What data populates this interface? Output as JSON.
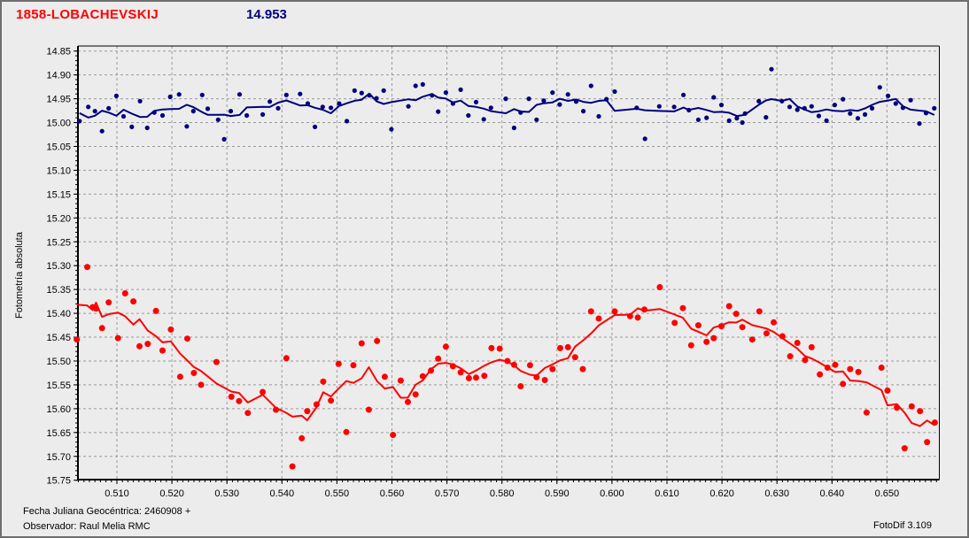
{
  "header": {
    "object_name": "1858-LOBACHEVSKIJ",
    "mean_magnitude": "14.953"
  },
  "footer": {
    "julian_date_line": "Fecha Juliana Geocéntrica: 2460908 +",
    "observer_line": "Observador: Raul Melia RMC",
    "app_version": "FotoDif 3.109"
  },
  "chart_data": {
    "type": "scatter",
    "title": "",
    "xlabel": "",
    "ylabel": "Fotometría absoluta",
    "grid": true,
    "legend": "none",
    "x_axis": {
      "min": 0.5028,
      "max": 0.6594,
      "tick_values": [
        0.51,
        0.52,
        0.53,
        0.54,
        0.55,
        0.56,
        0.57,
        0.58,
        0.59,
        0.6,
        0.61,
        0.62,
        0.63,
        0.64,
        0.65
      ],
      "tick_labels": [
        "0.510",
        "0.520",
        "0.530",
        "0.540",
        "0.550",
        "0.560",
        "0.570",
        "0.580",
        "0.590",
        "0.600",
        "0.610",
        "0.620",
        "0.630",
        "0.640",
        "0.650"
      ],
      "minor_step": 0.001
    },
    "y_axis": {
      "min": 14.85,
      "max": 15.75,
      "inverted": true,
      "tick_values": [
        14.85,
        14.9,
        14.95,
        15.0,
        15.05,
        15.1,
        15.15,
        15.2,
        15.25,
        15.3,
        15.35,
        15.4,
        15.45,
        15.5,
        15.55,
        15.6,
        15.65,
        15.7,
        15.75
      ],
      "tick_labels": [
        "14.85",
        "14.90",
        "14.95",
        "15.00",
        "15.05",
        "15.10",
        "15.15",
        "15.20",
        "15.25",
        "15.30",
        "15.35",
        "15.40",
        "15.45",
        "15.50",
        "15.55",
        "15.60",
        "15.65",
        "15.70",
        "15.75"
      ],
      "minor_step": 0.01
    },
    "colors": {
      "background": "#ececec",
      "grid": "#999999",
      "axis": "#000000",
      "blue_series": "#000080",
      "red_series": "#ff0000"
    },
    "series": [
      {
        "name": "blue",
        "color": "#000080",
        "marker_radius": 2.6,
        "trend_line": "moving_average_5",
        "points": [
          [
            0.5032,
            14.997
          ],
          [
            0.5048,
            14.967
          ],
          [
            0.506,
            14.976
          ],
          [
            0.5073,
            15.018
          ],
          [
            0.5085,
            14.97
          ],
          [
            0.5099,
            14.944
          ],
          [
            0.5112,
            14.987
          ],
          [
            0.5127,
            15.009
          ],
          [
            0.5142,
            14.955
          ],
          [
            0.5155,
            15.011
          ],
          [
            0.5168,
            14.979
          ],
          [
            0.5183,
            14.985
          ],
          [
            0.5197,
            14.946
          ],
          [
            0.5213,
            14.941
          ],
          [
            0.5227,
            15.008
          ],
          [
            0.5239,
            14.976
          ],
          [
            0.5255,
            14.942
          ],
          [
            0.5265,
            14.971
          ],
          [
            0.5284,
            14.994
          ],
          [
            0.5295,
            15.035
          ],
          [
            0.5307,
            14.976
          ],
          [
            0.5323,
            14.941
          ],
          [
            0.5336,
            14.985
          ],
          [
            0.5365,
            14.983
          ],
          [
            0.5378,
            14.956
          ],
          [
            0.5393,
            14.97
          ],
          [
            0.5408,
            14.942
          ],
          [
            0.5433,
            14.94
          ],
          [
            0.5447,
            14.96
          ],
          [
            0.546,
            15.009
          ],
          [
            0.5474,
            14.967
          ],
          [
            0.5489,
            14.969
          ],
          [
            0.5504,
            14.96
          ],
          [
            0.5518,
            14.997
          ],
          [
            0.5532,
            14.933
          ],
          [
            0.5545,
            14.938
          ],
          [
            0.5559,
            14.943
          ],
          [
            0.5572,
            14.949
          ],
          [
            0.5585,
            14.933
          ],
          [
            0.5599,
            15.014
          ],
          [
            0.563,
            14.966
          ],
          [
            0.5643,
            14.923
          ],
          [
            0.5656,
            14.92
          ],
          [
            0.5673,
            14.943
          ],
          [
            0.5684,
            14.977
          ],
          [
            0.5698,
            14.937
          ],
          [
            0.5711,
            14.96
          ],
          [
            0.5725,
            14.931
          ],
          [
            0.5739,
            14.985
          ],
          [
            0.5753,
            14.957
          ],
          [
            0.5767,
            14.993
          ],
          [
            0.578,
            14.969
          ],
          [
            0.5807,
            14.95
          ],
          [
            0.5822,
            15.011
          ],
          [
            0.5834,
            14.979
          ],
          [
            0.5849,
            14.95
          ],
          [
            0.5863,
            14.994
          ],
          [
            0.5876,
            14.954
          ],
          [
            0.5892,
            14.937
          ],
          [
            0.5905,
            14.962
          ],
          [
            0.592,
            14.941
          ],
          [
            0.5935,
            14.956
          ],
          [
            0.5948,
            14.976
          ],
          [
            0.5962,
            14.923
          ],
          [
            0.5976,
            14.987
          ],
          [
            0.599,
            14.951
          ],
          [
            0.6005,
            14.935
          ],
          [
            0.6045,
            14.969
          ],
          [
            0.606,
            15.034
          ],
          [
            0.6086,
            14.966
          ],
          [
            0.6113,
            14.967
          ],
          [
            0.613,
            14.942
          ],
          [
            0.614,
            14.974
          ],
          [
            0.6157,
            14.994
          ],
          [
            0.6172,
            14.99
          ],
          [
            0.6185,
            14.947
          ],
          [
            0.6199,
            14.963
          ],
          [
            0.6213,
            14.996
          ],
          [
            0.6227,
            14.991
          ],
          [
            0.6237,
            15.0
          ],
          [
            0.6242,
            14.981
          ],
          [
            0.6267,
            14.955
          ],
          [
            0.628,
            14.989
          ],
          [
            0.629,
            14.888
          ],
          [
            0.6309,
            14.955
          ],
          [
            0.6323,
            14.967
          ],
          [
            0.6337,
            14.973
          ],
          [
            0.635,
            14.97
          ],
          [
            0.6363,
            14.966
          ],
          [
            0.6376,
            14.986
          ],
          [
            0.639,
            14.996
          ],
          [
            0.6405,
            14.963
          ],
          [
            0.642,
            14.951
          ],
          [
            0.6433,
            14.981
          ],
          [
            0.6447,
            14.991
          ],
          [
            0.646,
            14.983
          ],
          [
            0.6473,
            14.97
          ],
          [
            0.6487,
            14.926
          ],
          [
            0.6502,
            14.944
          ],
          [
            0.6516,
            14.96
          ],
          [
            0.6529,
            14.969
          ],
          [
            0.6543,
            14.953
          ],
          [
            0.6559,
            15.002
          ],
          [
            0.6571,
            14.98
          ],
          [
            0.6586,
            14.97
          ]
        ]
      },
      {
        "name": "red",
        "color": "#ff0000",
        "marker_radius": 3.5,
        "trend_line": "moving_average_5",
        "points": [
          [
            0.5027,
            15.455
          ],
          [
            0.5046,
            15.303
          ],
          [
            0.5056,
            15.387
          ],
          [
            0.5062,
            15.39
          ],
          [
            0.5073,
            15.431
          ],
          [
            0.5085,
            15.377
          ],
          [
            0.5102,
            15.452
          ],
          [
            0.5115,
            15.358
          ],
          [
            0.513,
            15.375
          ],
          [
            0.5141,
            15.469
          ],
          [
            0.5156,
            15.464
          ],
          [
            0.5171,
            15.395
          ],
          [
            0.5183,
            15.478
          ],
          [
            0.5198,
            15.434
          ],
          [
            0.5215,
            15.533
          ],
          [
            0.5228,
            15.453
          ],
          [
            0.524,
            15.525
          ],
          [
            0.5253,
            15.55
          ],
          [
            0.5281,
            15.502
          ],
          [
            0.5308,
            15.575
          ],
          [
            0.5322,
            15.584
          ],
          [
            0.5338,
            15.609
          ],
          [
            0.5365,
            15.565
          ],
          [
            0.5389,
            15.602
          ],
          [
            0.5408,
            15.494
          ],
          [
            0.5419,
            15.721
          ],
          [
            0.5436,
            15.662
          ],
          [
            0.5446,
            15.605
          ],
          [
            0.5463,
            15.591
          ],
          [
            0.5475,
            15.543
          ],
          [
            0.5489,
            15.583
          ],
          [
            0.5503,
            15.506
          ],
          [
            0.5517,
            15.649
          ],
          [
            0.553,
            15.509
          ],
          [
            0.5545,
            15.463
          ],
          [
            0.5558,
            15.602
          ],
          [
            0.5573,
            15.458
          ],
          [
            0.5587,
            15.533
          ],
          [
            0.5602,
            15.655
          ],
          [
            0.5616,
            15.541
          ],
          [
            0.5629,
            15.586
          ],
          [
            0.5643,
            15.57
          ],
          [
            0.5656,
            15.532
          ],
          [
            0.5671,
            15.52
          ],
          [
            0.5684,
            15.495
          ],
          [
            0.5698,
            15.47
          ],
          [
            0.5711,
            15.511
          ],
          [
            0.5725,
            15.524
          ],
          [
            0.574,
            15.536
          ],
          [
            0.5753,
            15.535
          ],
          [
            0.5768,
            15.531
          ],
          [
            0.5781,
            15.473
          ],
          [
            0.5796,
            15.474
          ],
          [
            0.581,
            15.5
          ],
          [
            0.5822,
            15.508
          ],
          [
            0.5834,
            15.553
          ],
          [
            0.5851,
            15.509
          ],
          [
            0.5863,
            15.534
          ],
          [
            0.5878,
            15.54
          ],
          [
            0.5892,
            15.517
          ],
          [
            0.5906,
            15.473
          ],
          [
            0.592,
            15.471
          ],
          [
            0.5933,
            15.492
          ],
          [
            0.5947,
            15.517
          ],
          [
            0.5962,
            15.396
          ],
          [
            0.5976,
            15.411
          ],
          [
            0.6005,
            15.396
          ],
          [
            0.6033,
            15.406
          ],
          [
            0.6047,
            15.409
          ],
          [
            0.6059,
            15.392
          ],
          [
            0.6087,
            15.345
          ],
          [
            0.6114,
            15.42
          ],
          [
            0.6129,
            15.389
          ],
          [
            0.6144,
            15.467
          ],
          [
            0.6157,
            15.425
          ],
          [
            0.6172,
            15.46
          ],
          [
            0.6185,
            15.452
          ],
          [
            0.6199,
            15.427
          ],
          [
            0.6213,
            15.385
          ],
          [
            0.6226,
            15.401
          ],
          [
            0.6237,
            15.429
          ],
          [
            0.6255,
            15.455
          ],
          [
            0.6268,
            15.396
          ],
          [
            0.6281,
            15.442
          ],
          [
            0.6294,
            15.419
          ],
          [
            0.631,
            15.448
          ],
          [
            0.6324,
            15.49
          ],
          [
            0.6337,
            15.462
          ],
          [
            0.6351,
            15.498
          ],
          [
            0.6363,
            15.471
          ],
          [
            0.6378,
            15.528
          ],
          [
            0.6392,
            15.514
          ],
          [
            0.6406,
            15.508
          ],
          [
            0.642,
            15.548
          ],
          [
            0.6433,
            15.517
          ],
          [
            0.6448,
            15.523
          ],
          [
            0.6463,
            15.608
          ],
          [
            0.649,
            15.514
          ],
          [
            0.6501,
            15.562
          ],
          [
            0.6518,
            15.598
          ],
          [
            0.6532,
            15.683
          ],
          [
            0.6545,
            15.595
          ],
          [
            0.656,
            15.605
          ],
          [
            0.6573,
            15.67
          ],
          [
            0.6587,
            15.629
          ]
        ]
      }
    ]
  }
}
